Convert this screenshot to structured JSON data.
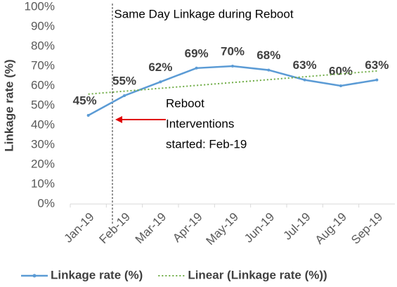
{
  "chart_data": {
    "type": "line",
    "title": "Same Day Linkage during Reboot",
    "y_label": "Linkage rate (%)",
    "categories": [
      "Jan-19",
      "Feb-19",
      "Mar-19",
      "Apr-19",
      "May-19",
      "Jun-19",
      "Jul-19",
      "Aug-19",
      "Sep-19"
    ],
    "series": [
      {
        "name": "Linkage rate (%)",
        "color": "#5b9bd5",
        "values": [
          45,
          55,
          62,
          69,
          70,
          68,
          63,
          60,
          63
        ],
        "value_labels": [
          "45%",
          "55%",
          "62%",
          "69%",
          "70%",
          "68%",
          "63%",
          "60%",
          "63%"
        ]
      },
      {
        "name": "Linear (Linkage rate (%))",
        "color": "#70ad47",
        "trendline": "linear"
      }
    ],
    "annotation": [
      "Reboot",
      "Interventions",
      "started: Feb-19"
    ],
    "ylim": [
      0,
      100
    ],
    "yticks": [
      {
        "value": 0,
        "label": "0%"
      },
      {
        "value": 10,
        "label": "10%"
      },
      {
        "value": 20,
        "label": "20%"
      },
      {
        "value": 30,
        "label": "30%"
      },
      {
        "value": 40,
        "label": "40%"
      },
      {
        "value": 50,
        "label": "50%"
      },
      {
        "value": 60,
        "label": "60%"
      },
      {
        "value": 70,
        "label": "70%"
      },
      {
        "value": 80,
        "label": "80%"
      },
      {
        "value": 90,
        "label": "90%"
      },
      {
        "value": 100,
        "label": "100%"
      }
    ],
    "grid": false,
    "legend": "bottom"
  }
}
